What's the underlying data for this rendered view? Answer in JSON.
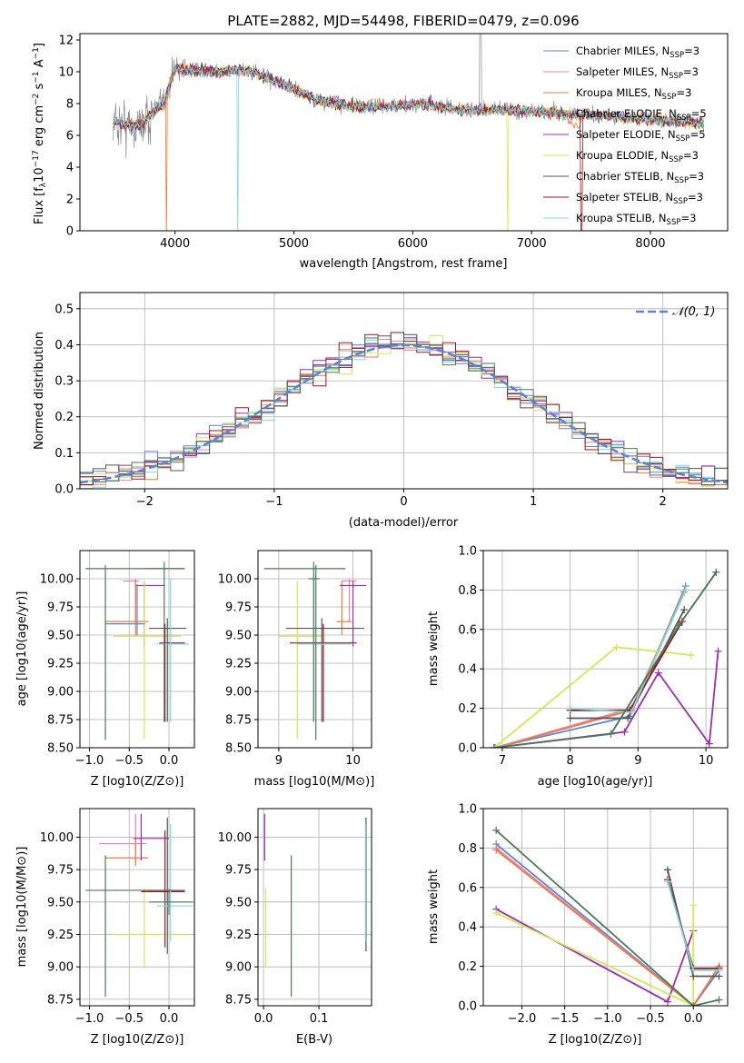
{
  "colors": {
    "Chabrier MILES": "#5b84d6",
    "Salpeter MILES": "#e882b4",
    "Kroupa MILES": "#f07b3e",
    "Chabrier ELODIE": "#8b8b8b",
    "Salpeter ELODIE": "#9b2fae",
    "Kroupa ELODIE": "#d4e857",
    "Chabrier STELIB": "#555555",
    "Salpeter STELIB": "#a0141e",
    "Kroupa STELIB": "#7fd8e0",
    "normal": "#5b84d6",
    "extra": "#4a7a5a"
  },
  "chart_data": [
    {
      "type": "line",
      "id": "spectrum",
      "title": "PLATE=2882, MJD=54498, FIBERID=0479, z=0.096",
      "xlabel": "wavelength [Angstrom, rest frame]",
      "ylabel_parts": {
        "a": "Flux [f",
        "b": "λ",
        "c": "10",
        "d": "−17",
        "e": " erg cm",
        "f": "−2",
        "g": " s",
        "h": "−1",
        "i": " A",
        "j": "−1",
        "k": "]"
      },
      "xlim": [
        3200,
        8650
      ],
      "ylim": [
        0,
        12.4
      ],
      "xticks": [
        4000,
        5000,
        6000,
        7000,
        8000
      ],
      "yticks": [
        0,
        2,
        4,
        6,
        8,
        10,
        12
      ],
      "legend": [
        {
          "name": "Chabrier MILES",
          "nssp": "3"
        },
        {
          "name": "Salpeter MILES",
          "nssp": "3"
        },
        {
          "name": "Kroupa MILES",
          "nssp": "3"
        },
        {
          "name": "Chabrier ELODIE",
          "nssp": "5"
        },
        {
          "name": "Salpeter ELODIE",
          "nssp": "5"
        },
        {
          "name": "Kroupa ELODIE",
          "nssp": "3"
        },
        {
          "name": "Chabrier STELIB",
          "nssp": "3"
        },
        {
          "name": "Salpeter STELIB",
          "nssp": "3"
        },
        {
          "name": "Kroupa STELIB",
          "nssp": "3"
        }
      ],
      "legend_sub": "SSP",
      "legend_prefix": "N",
      "continuum": [
        [
          3480,
          6.8
        ],
        [
          3700,
          6.6
        ],
        [
          3900,
          8.0
        ],
        [
          4000,
          10.2
        ],
        [
          4300,
          10.0
        ],
        [
          4600,
          10.1
        ],
        [
          4800,
          9.6
        ],
        [
          5000,
          8.9
        ],
        [
          5200,
          8.2
        ],
        [
          5500,
          7.8
        ],
        [
          5800,
          7.8
        ],
        [
          6100,
          8.0
        ],
        [
          6400,
          7.6
        ],
        [
          6800,
          7.6
        ],
        [
          7200,
          7.4
        ],
        [
          7500,
          7.3
        ],
        [
          8000,
          7.0
        ],
        [
          8450,
          6.8
        ]
      ],
      "legend_position": "upper right"
    },
    {
      "type": "histogram",
      "id": "residuals",
      "xlabel": "(data-model)/error",
      "ylabel": "Normed distribution",
      "xlim": [
        -2.5,
        2.5
      ],
      "ylim": [
        0,
        0.545
      ],
      "xticks": [
        -2,
        -1,
        0,
        1,
        2
      ],
      "yticks": [
        0.0,
        0.1,
        0.2,
        0.3,
        0.4,
        0.5
      ],
      "bin_width": 0.1,
      "normal_label": "𝒩(0, 1)",
      "normal": {
        "mean": 0,
        "sigma": 1
      },
      "legend_position": "upper right",
      "grid": true
    },
    {
      "type": "scatter",
      "id": "age-vs-Z",
      "xlabel": "Z [log10(Z/Z⊙)]",
      "ylabel": "age  [log10(age/yr)]",
      "xlim": [
        -1.12,
        0.32
      ],
      "ylim": [
        8.5,
        10.25
      ],
      "xticks": [
        -1.0,
        -0.5,
        0.0
      ],
      "yticks": [
        8.5,
        8.75,
        9.0,
        9.25,
        9.5,
        9.75,
        10.0
      ],
      "grid": true,
      "points": [
        {
          "s": "Salpeter MILES",
          "x": -0.42,
          "xe": [
            -0.58,
            -0.38
          ],
          "y": 9.98,
          "ye": [
            9.62,
            10.0
          ]
        },
        {
          "s": "Kroupa MILES",
          "x": -0.42,
          "xe": [
            -0.8,
            -0.26
          ],
          "y": 9.62,
          "ye": [
            9.5,
            9.98
          ]
        },
        {
          "s": "Salpeter ELODIE",
          "x": -0.31,
          "xe": [
            -0.42,
            -0.05
          ],
          "y": 9.94,
          "ye": [
            9.4,
            9.98
          ]
        },
        {
          "s": "Kroupa ELODIE",
          "x": -0.31,
          "xe": [
            -0.7,
            0.15
          ],
          "y": 9.49,
          "ye": [
            8.58,
            9.98
          ]
        },
        {
          "s": "Chabrier STELIB",
          "x": -0.02,
          "xe": [
            -0.25,
            0.22
          ],
          "y": 9.56,
          "ye": [
            8.73,
            9.65
          ]
        },
        {
          "s": "Salpeter STELIB",
          "x": -0.05,
          "xe": [
            -0.12,
            0.2
          ],
          "y": 9.43,
          "ye": [
            8.73,
            9.6
          ]
        },
        {
          "s": "Kroupa STELIB",
          "x": 0.02,
          "xe": [
            -0.15,
            0.25
          ],
          "y": 9.42,
          "ye": [
            8.73,
            10.0
          ]
        },
        {
          "s": "Chabrier MILES",
          "x": -0.4,
          "xe": [
            -0.8,
            -0.3
          ],
          "y": 9.6,
          "ye": [
            9.5,
            9.95
          ]
        },
        {
          "s": "extra",
          "x": -0.8,
          "xe": [
            -1.05,
            0.2
          ],
          "y": 10.09,
          "ye": [
            8.57,
            10.12
          ]
        },
        {
          "s": "extra",
          "x": -0.06,
          "xe": [
            -0.3,
            0.2
          ],
          "y": 10.09,
          "ye": [
            8.73,
            10.15
          ]
        }
      ]
    },
    {
      "type": "scatter",
      "id": "age-vs-mass",
      "xlabel": "mass [log10(M/M⊙)]",
      "ylabel": "",
      "xlim": [
        8.72,
        10.25
      ],
      "ylim": [
        8.5,
        10.25
      ],
      "xticks": [
        9,
        10
      ],
      "yticks": [
        8.5,
        8.75,
        9.0,
        9.25,
        9.5,
        9.75,
        10.0
      ],
      "grid": true,
      "points": [
        {
          "s": "Salpeter MILES",
          "x": 9.95,
          "xe": [
            9.85,
            10.05
          ],
          "y": 9.98,
          "ye": [
            9.62,
            10.0
          ]
        },
        {
          "s": "Kroupa MILES",
          "x": 9.85,
          "xe": [
            9.78,
            9.98
          ],
          "y": 9.62,
          "ye": [
            9.5,
            9.98
          ]
        },
        {
          "s": "Salpeter ELODIE",
          "x": 10.0,
          "xe": [
            9.82,
            10.18
          ],
          "y": 9.94,
          "ye": [
            9.4,
            9.98
          ]
        },
        {
          "s": "Kroupa ELODIE",
          "x": 9.25,
          "xe": [
            9.0,
            9.6
          ],
          "y": 9.49,
          "ye": [
            8.58,
            9.98
          ]
        },
        {
          "s": "Chabrier STELIB",
          "x": 9.58,
          "xe": [
            9.1,
            10.15
          ],
          "y": 9.56,
          "ye": [
            8.73,
            9.65
          ]
        },
        {
          "s": "Salpeter STELIB",
          "x": 9.6,
          "xe": [
            9.15,
            10.05
          ],
          "y": 9.43,
          "ye": [
            8.73,
            9.6
          ]
        },
        {
          "s": "Kroupa STELIB",
          "x": 9.47,
          "xe": [
            9.25,
            9.98
          ],
          "y": 9.42,
          "ye": [
            8.73,
            10.0
          ]
        },
        {
          "s": "extra",
          "x": 9.5,
          "xe": [
            8.8,
            9.9
          ],
          "y": 10.09,
          "ye": [
            8.57,
            10.12
          ]
        },
        {
          "s": "extra",
          "x": 9.47,
          "xe": [
            9.4,
            9.55
          ],
          "y": 10.0,
          "ye": [
            8.73,
            10.15
          ]
        }
      ]
    },
    {
      "type": "line",
      "id": "weight-vs-age",
      "xlabel": "age  [log10(age/yr)]",
      "ylabel": "mass weight",
      "xlim": [
        6.72,
        10.32
      ],
      "ylim": [
        0,
        1.0
      ],
      "xticks": [
        7,
        8,
        9,
        10
      ],
      "yticks": [
        0.0,
        0.2,
        0.4,
        0.6,
        0.8,
        1.0
      ],
      "grid": true,
      "series": [
        {
          "s": "Chabrier MILES",
          "x": [
            6.88,
            8.88,
            9.7
          ],
          "y": [
            0.0,
            0.16,
            0.82
          ]
        },
        {
          "s": "Salpeter MILES",
          "x": [
            6.9,
            8.9,
            9.7
          ],
          "y": [
            0.0,
            0.2,
            0.8
          ]
        },
        {
          "s": "Kroupa MILES",
          "x": [
            6.9,
            8.9,
            9.68
          ],
          "y": [
            0.0,
            0.19,
            0.79
          ]
        },
        {
          "s": "Chabrier ELODIE",
          "x": [
            6.88,
            8.6,
            9.6,
            10.15
          ],
          "y": [
            0.0,
            0.07,
            0.62,
            0.89
          ]
        },
        {
          "s": "Salpeter ELODIE",
          "x": [
            6.88,
            8.8,
            9.3,
            10.05,
            10.18
          ],
          "y": [
            0.0,
            0.08,
            0.38,
            0.02,
            0.49
          ]
        },
        {
          "s": "Kroupa ELODIE",
          "x": [
            6.88,
            8.68,
            9.78
          ],
          "y": [
            0.0,
            0.51,
            0.47
          ]
        },
        {
          "s": "Chabrier STELIB",
          "x": [
            8.0,
            8.85,
            9.68
          ],
          "y": [
            0.15,
            0.15,
            0.7
          ]
        },
        {
          "s": "Salpeter STELIB",
          "x": [
            8.0,
            8.88,
            9.65
          ],
          "y": [
            0.19,
            0.19,
            0.64
          ]
        },
        {
          "s": "Kroupa STELIB",
          "x": [
            8.0,
            8.9,
            9.7
          ],
          "y": [
            0.2,
            0.18,
            0.8
          ]
        },
        {
          "s": "extra",
          "x": [
            6.88,
            8.6,
            9.6,
            10.15
          ],
          "y": [
            0.0,
            0.07,
            0.62,
            0.89
          ]
        }
      ]
    },
    {
      "type": "scatter",
      "id": "mass-vs-Z",
      "xlabel": "Z [log10(Z/Z⊙)]",
      "ylabel": "mass [log10(M/M⊙)]",
      "xlim": [
        -1.12,
        0.32
      ],
      "ylim": [
        8.7,
        10.22
      ],
      "xticks": [
        -1.0,
        -0.5,
        0.0
      ],
      "yticks": [
        8.75,
        9.0,
        9.25,
        9.5,
        9.75,
        10.0
      ],
      "grid": true,
      "points": [
        {
          "s": "Salpeter MILES",
          "x": -0.42,
          "xe": [
            -0.88,
            -0.28
          ],
          "y": 9.95,
          "ye": [
            9.8,
            10.18
          ]
        },
        {
          "s": "Kroupa MILES",
          "x": -0.42,
          "xe": [
            -0.8,
            -0.26
          ],
          "y": 9.84,
          "ye": [
            9.78,
            10.0
          ]
        },
        {
          "s": "Salpeter ELODIE",
          "x": -0.35,
          "xe": [
            -0.45,
            0.0
          ],
          "y": 9.99,
          "ye": [
            9.82,
            10.18
          ]
        },
        {
          "s": "Kroupa ELODIE",
          "x": -0.31,
          "xe": [
            -0.7,
            0.25
          ],
          "y": 9.25,
          "ye": [
            8.99,
            9.6
          ]
        },
        {
          "s": "Chabrier STELIB",
          "x": -0.02,
          "xe": [
            -0.25,
            0.2
          ],
          "y": 9.58,
          "ye": [
            9.1,
            10.15
          ]
        },
        {
          "s": "Salpeter STELIB",
          "x": -0.05,
          "xe": [
            -0.35,
            0.2
          ],
          "y": 9.58,
          "ye": [
            9.15,
            10.05
          ]
        },
        {
          "s": "Kroupa STELIB",
          "x": 0.02,
          "xe": [
            -0.15,
            0.3
          ],
          "y": 9.47,
          "ye": [
            9.2,
            10.1
          ]
        },
        {
          "s": "extra",
          "x": -0.8,
          "xe": [
            -1.05,
            0.2
          ],
          "y": 9.59,
          "ye": [
            8.77,
            9.86
          ]
        },
        {
          "s": "extra",
          "x": 0.0,
          "xe": [
            -0.25,
            0.3
          ],
          "y": 9.5,
          "ye": [
            9.4,
            9.6
          ]
        }
      ]
    },
    {
      "type": "scatter",
      "id": "mass-vs-EBV",
      "xlabel": "E(B-V)",
      "ylabel": "",
      "xlim": [
        -0.01,
        0.195
      ],
      "ylim": [
        8.7,
        10.22
      ],
      "xticks": [
        0.0,
        0.1
      ],
      "yticks": [
        8.75,
        9.0,
        9.25,
        9.5,
        9.75,
        10.0
      ],
      "grid": true,
      "points": [
        {
          "s": "Salpeter ELODIE",
          "x": 0.002,
          "xe": [
            0.002,
            0.002
          ],
          "y": 10.0,
          "ye": [
            9.82,
            10.18
          ]
        },
        {
          "s": "Kroupa ELODIE",
          "x": 0.004,
          "xe": [
            0.004,
            0.004
          ],
          "y": 9.25,
          "ye": [
            8.99,
            9.6
          ]
        },
        {
          "s": "extra",
          "x": 0.05,
          "xe": [
            0.05,
            0.05
          ],
          "y": 9.6,
          "ye": [
            8.77,
            9.86
          ]
        },
        {
          "s": "Chabrier STELIB",
          "x": 0.185,
          "xe": [
            0.185,
            0.185
          ],
          "y": 9.6,
          "ye": [
            9.12,
            10.15
          ]
        },
        {
          "s": "Kroupa STELIB",
          "x": 0.184,
          "xe": [
            0.184,
            0.184
          ],
          "y": 9.6,
          "ye": [
            9.2,
            10.1
          ]
        }
      ]
    },
    {
      "type": "line",
      "id": "weight-vs-Z",
      "xlabel": "Z [log10(Z/Z⊙)]",
      "ylabel": "mass weight",
      "xlim": [
        -2.45,
        0.4
      ],
      "ylim": [
        0,
        1.0
      ],
      "xticks": [
        -2.0,
        -1.5,
        -1.0,
        -0.5,
        0.0
      ],
      "yticks": [
        0.0,
        0.2,
        0.4,
        0.6,
        0.8,
        1.0
      ],
      "grid": true,
      "series": [
        {
          "s": "Chabrier MILES",
          "x": [
            -2.3,
            0.0,
            0.3
          ],
          "y": [
            0.82,
            0.0,
            0.18
          ]
        },
        {
          "s": "Salpeter MILES",
          "x": [
            -2.3,
            0.0,
            0.3
          ],
          "y": [
            0.8,
            0.0,
            0.2
          ]
        },
        {
          "s": "Kroupa MILES",
          "x": [
            -2.3,
            0.0,
            0.3
          ],
          "y": [
            0.79,
            0.0,
            0.2
          ]
        },
        {
          "s": "Salpeter ELODIE",
          "x": [
            -2.3,
            -0.3,
            0.0
          ],
          "y": [
            0.49,
            0.02,
            0.38
          ]
        },
        {
          "s": "Kroupa ELODIE",
          "x": [
            -2.3,
            0.0,
            0.0
          ],
          "y": [
            0.47,
            0.0,
            0.51
          ]
        },
        {
          "s": "Chabrier STELIB",
          "x": [
            -0.3,
            0.0,
            0.3
          ],
          "y": [
            0.69,
            0.15,
            0.15
          ]
        },
        {
          "s": "Salpeter STELIB",
          "x": [
            -0.3,
            0.0,
            0.3
          ],
          "y": [
            0.64,
            0.19,
            0.19
          ]
        },
        {
          "s": "Kroupa STELIB",
          "x": [
            -0.3,
            0.0,
            0.3
          ],
          "y": [
            0.63,
            0.18,
            0.18
          ]
        },
        {
          "s": "extra",
          "x": [
            -2.3,
            0.0,
            0.3
          ],
          "y": [
            0.89,
            0.0,
            0.03
          ]
        }
      ]
    }
  ]
}
